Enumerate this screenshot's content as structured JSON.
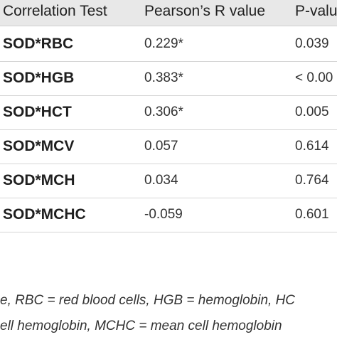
{
  "table": {
    "headers": [
      "Correlation Test",
      "Pearson’s R value",
      "P-valu"
    ],
    "rows": [
      {
        "test": "SOD*RBC",
        "r": "0.229*",
        "p": "0.039"
      },
      {
        "test": "SOD*HGB",
        "r": "0.383*",
        "p": "< 0.00"
      },
      {
        "test": "SOD*HCT",
        "r": "0.306*",
        "p": "0.005"
      },
      {
        "test": "SOD*MCV",
        "r": "0.057",
        "p": "0.614"
      },
      {
        "test": "SOD*MCH",
        "r": "0.034",
        "p": "0.764"
      },
      {
        "test": "SOD*MCHC",
        "r": "-0.059",
        "p": "0.601"
      }
    ]
  },
  "footnote": {
    "line1": "e, RBC = red blood cells, HGB = hemoglobin, HC",
    "line2": "ell hemoglobin, MCHC = mean cell hemoglobin"
  }
}
